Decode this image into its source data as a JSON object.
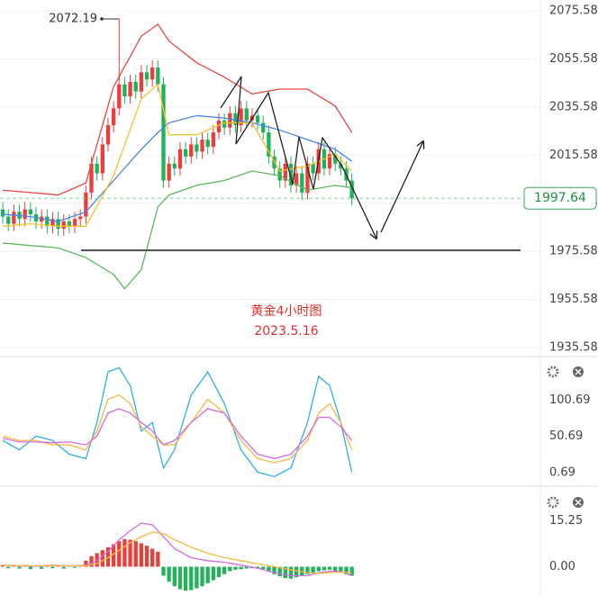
{
  "chart_data": [
    {
      "type": "candlestick",
      "xlim": [
        -0.5,
        96.7
      ],
      "ylim": [
        1932.21,
        2080.07
      ],
      "yticks": [
        2075.58,
        2055.58,
        2035.58,
        2015.58,
        1995.58,
        1975.58,
        1955.58,
        1935.58
      ],
      "grid": true,
      "up_color": "#ee3b3b",
      "down_color": "#1fb25a",
      "open": [
        1993,
        1990,
        1987,
        1992,
        1989,
        1993,
        1991,
        1988,
        1990,
        1986,
        1989,
        1985,
        1988,
        1986,
        1989,
        1990,
        2000,
        2012,
        2008,
        2020,
        2028,
        2035,
        2045,
        2040,
        2046,
        2042,
        2050,
        2047,
        2052,
        2045,
        2005,
        2012,
        2010,
        2018,
        2015,
        2020,
        2017,
        2022,
        2019,
        2025,
        2030,
        2027,
        2033,
        2028,
        2035,
        2030,
        2032,
        2029,
        2025,
        2015,
        2010,
        2005,
        2012,
        2003,
        2008,
        2000,
        2012,
        2008,
        2018,
        2010,
        2016,
        2012,
        2010,
        2005
      ],
      "high": [
        1996,
        1993,
        1995,
        1995,
        1996,
        1996,
        1994,
        1993,
        1993,
        1992,
        1992,
        1991,
        1991,
        1992,
        1993,
        2003,
        2015,
        2015,
        2023,
        2031,
        2038,
        2072.19,
        2048,
        2049,
        2049,
        2053,
        2053,
        2055,
        2055,
        2048,
        2015,
        2015,
        2021,
        2021,
        2023,
        2023,
        2025,
        2025,
        2028,
        2033,
        2033,
        2036,
        2036,
        2038,
        2038,
        2035,
        2035,
        2032,
        2028,
        2018,
        2013,
        2015,
        2015,
        2011,
        2011,
        2015,
        2015,
        2021,
        2021,
        2019,
        2019,
        2015,
        2013,
        2008
      ],
      "low": [
        1987,
        1984,
        1984,
        1986,
        1986,
        1988,
        1985,
        1985,
        1983,
        1983,
        1982,
        1982,
        1983,
        1983,
        1986,
        1987,
        1997,
        2005,
        2005,
        2017,
        2025,
        2032,
        2037,
        2037,
        2039,
        2039,
        2044,
        2044,
        2042,
        2002,
        2002,
        2007,
        2007,
        2012,
        2012,
        2014,
        2014,
        2016,
        2016,
        2022,
        2024,
        2024,
        2025,
        2025,
        2027,
        2027,
        2026,
        2022,
        2012,
        2007,
        2002,
        2002,
        2000,
        2000,
        1997,
        1997,
        2005,
        2005,
        2007,
        2007,
        2009,
        2007,
        2002,
        1994.64
      ],
      "close": [
        1990,
        1987,
        1992,
        1989,
        1993,
        1991,
        1988,
        1990,
        1986,
        1989,
        1985,
        1988,
        1986,
        1989,
        1990,
        2000,
        2012,
        2008,
        2020,
        2028,
        2035,
        2045,
        2040,
        2046,
        2042,
        2050,
        2047,
        2052,
        2045,
        2005,
        2012,
        2010,
        2018,
        2015,
        2020,
        2017,
        2022,
        2019,
        2025,
        2030,
        2027,
        2033,
        2028,
        2035,
        2030,
        2032,
        2029,
        2025,
        2015,
        2010,
        2005,
        2012,
        2003,
        2008,
        2000,
        2012,
        2008,
        2018,
        2010,
        2016,
        2012,
        2010,
        2005,
        1997.64
      ],
      "series": [
        {
          "color": "#e8483f",
          "x": [
            0,
            5,
            10,
            15,
            20,
            25,
            28,
            30,
            35,
            40,
            45,
            50,
            55,
            60,
            63
          ],
          "values": [
            2001,
            2000,
            1999,
            2004,
            2044,
            2065,
            2070,
            2063,
            2054,
            2048,
            2041,
            2043,
            2043,
            2036,
            2025
          ]
        },
        {
          "color": "#4a86e8",
          "x": [
            0,
            5,
            10,
            15,
            20,
            25,
            28,
            30,
            35,
            40,
            45,
            50,
            55,
            60,
            63
          ],
          "values": [
            1991,
            1990,
            1988,
            1992,
            2005,
            2018,
            2025,
            2029,
            2032,
            2031,
            2029,
            2026,
            2022,
            2018,
            2013
          ]
        },
        {
          "color": "#5cb85c",
          "x": [
            0,
            5,
            10,
            15,
            20,
            22,
            25,
            28,
            30,
            35,
            40,
            45,
            50,
            55,
            60,
            63
          ],
          "values": [
            1979,
            1978,
            1977,
            1973,
            1966,
            1960,
            1968,
            1994,
            1999,
            2003,
            2005,
            2009,
            2007,
            2001,
            2003,
            2002
          ]
        },
        {
          "color": "#f2c230",
          "x": [
            0,
            5,
            10,
            15,
            20,
            25,
            28,
            30,
            35,
            40,
            45,
            50,
            55,
            60,
            63
          ],
          "values": [
            1986,
            1987,
            1986,
            1986,
            2007,
            2039,
            2045,
            2024,
            2024,
            2029,
            2029,
            2009,
            2011,
            2016,
            2009
          ]
        }
      ],
      "hline": 1976,
      "annotations": [
        "黄金4小时图",
        "2023.5.16"
      ]
    },
    {
      "type": "line",
      "xlim": [
        -0.5,
        96.7
      ],
      "ylim": [
        -15.8,
        158.9
      ],
      "yticks": [
        100.69,
        50.69,
        0.69
      ],
      "series": [
        {
          "color": "#2fb0e6",
          "x": [
            0,
            3,
            6,
            9,
            12,
            15,
            17,
            19,
            21,
            23,
            25,
            27,
            29,
            31,
            34,
            37,
            40,
            43,
            46,
            49,
            52,
            55,
            57,
            59,
            61,
            63
          ],
          "values": [
            45,
            32,
            51,
            45,
            26,
            20,
            70,
            140,
            146,
            121,
            58,
            70,
            7,
            32,
            108,
            140,
            96,
            32,
            1,
            -5,
            7,
            70,
            134,
            121,
            70,
            1
          ]
        },
        {
          "color": "#f4b942",
          "x": [
            0,
            3,
            6,
            9,
            12,
            15,
            17,
            19,
            21,
            23,
            25,
            27,
            29,
            31,
            34,
            37,
            40,
            43,
            46,
            49,
            52,
            55,
            57,
            59,
            61,
            63
          ],
          "values": [
            51,
            45,
            45,
            39,
            39,
            32,
            58,
            102,
            108,
            96,
            64,
            51,
            39,
            39,
            70,
            102,
            83,
            45,
            20,
            14,
            20,
            45,
            83,
            96,
            70,
            32
          ]
        },
        {
          "color": "#d66be0",
          "x": [
            0,
            3,
            6,
            9,
            12,
            15,
            17,
            19,
            21,
            23,
            25,
            27,
            29,
            31,
            34,
            37,
            40,
            43,
            46,
            49,
            52,
            55,
            57,
            59,
            61,
            63
          ],
          "values": [
            48,
            43,
            43,
            42,
            43,
            39,
            51,
            83,
            89,
            83,
            70,
            58,
            39,
            45,
            70,
            89,
            83,
            51,
            26,
            20,
            26,
            51,
            77,
            77,
            64,
            45
          ]
        }
      ]
    },
    {
      "type": "bar",
      "xlim": [
        -0.5,
        96.7
      ],
      "ylim": [
        -9.76,
        26.84
      ],
      "yticks": [
        15.25,
        {
          "value": 0,
          "label": "0.00"
        }
      ],
      "up_color": "#e5403a",
      "down_color": "#22b25a",
      "values": [
        0.5,
        -0.5,
        0.6,
        -0.6,
        0.4,
        -0.8,
        0.5,
        -0.7,
        0.6,
        -0.5,
        0.4,
        -0.6,
        0.3,
        -0.4,
        0.5,
        2,
        3.5,
        4.5,
        5.5,
        6.5,
        7.5,
        8.5,
        9.2,
        9,
        8.5,
        7.8,
        7,
        6,
        5,
        -3,
        -5,
        -6.5,
        -7.5,
        -8,
        -7.8,
        -7.2,
        -6.5,
        -5.5,
        -4.5,
        -3.5,
        -2.5,
        -1.5,
        -1,
        -0.8,
        -0.6,
        -0.5,
        -0.6,
        -0.8,
        -1.5,
        -2.5,
        -3.2,
        -3.8,
        -4,
        -3.5,
        -3,
        -2.5,
        -2,
        -1.5,
        -1.2,
        -1,
        -1.5,
        -2,
        -2.5,
        -3
      ],
      "series": [
        {
          "color": "#d66be0",
          "x": [
            0,
            3,
            6,
            9,
            12,
            15,
            17,
            19,
            21,
            23,
            25,
            27,
            29,
            31,
            34,
            37,
            40,
            43,
            46,
            49,
            52,
            55,
            57,
            59,
            61,
            63
          ],
          "values": [
            0.5,
            0.3,
            0.2,
            0.5,
            0.3,
            0.5,
            2,
            5,
            9,
            12,
            14.5,
            14,
            10,
            6,
            3,
            2,
            1.5,
            0.5,
            -0.5,
            -2,
            -3,
            -3,
            -2,
            -1.5,
            -1.5,
            -3
          ]
        },
        {
          "color": "#f4b942",
          "x": [
            0,
            3,
            6,
            9,
            12,
            15,
            17,
            19,
            21,
            23,
            25,
            27,
            29,
            31,
            34,
            37,
            40,
            43,
            46,
            49,
            52,
            55,
            57,
            59,
            61,
            63
          ],
          "values": [
            0.5,
            0.4,
            0.3,
            0.4,
            0.3,
            0.4,
            1,
            3,
            5.5,
            8,
            10,
            11.5,
            11,
            9,
            6.5,
            4.5,
            3,
            2,
            1,
            0,
            -1,
            -2,
            -2.2,
            -2,
            -1.8,
            -2
          ]
        }
      ]
    }
  ]
}
